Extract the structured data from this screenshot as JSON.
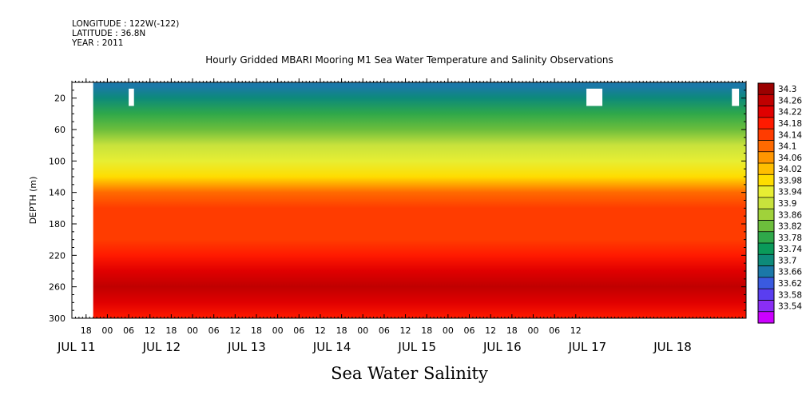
{
  "header": {
    "longitude": "LONGITUDE : 122W(-122)",
    "latitude": "LATITUDE : 36.8N",
    "year": "YEAR : 2011"
  },
  "chart_data": {
    "type": "heatmap",
    "title": "Hourly Gridded MBARI Mooring M1 Sea Water Temperature and Salinity Observations",
    "xlabel": "",
    "ylabel": "DEPTH (m)",
    "caption": "Sea Water Salinity",
    "x_range_hours": [
      0,
      190
    ],
    "ylim": [
      0,
      300
    ],
    "y_ticks": [
      20,
      60,
      100,
      140,
      180,
      220,
      260,
      300
    ],
    "x_hour_tick_labels": [
      "18",
      "00",
      "06",
      "12",
      "18",
      "00",
      "06",
      "12",
      "18",
      "00",
      "06",
      "12",
      "18",
      "00",
      "06",
      "12",
      "18",
      "00",
      "06",
      "12",
      "18",
      "00",
      "06",
      "12"
    ],
    "x_day_labels": [
      {
        "label": "JUL 11",
        "hour": 0
      },
      {
        "label": "JUL 12",
        "hour": 24
      },
      {
        "label": "JUL 13",
        "hour": 48
      },
      {
        "label": "JUL 14",
        "hour": 72
      },
      {
        "label": "JUL 15",
        "hour": 96
      },
      {
        "label": "JUL 16",
        "hour": 120
      },
      {
        "label": "JUL 17",
        "hour": 144
      },
      {
        "label": "JUL 18",
        "hour": 168
      }
    ],
    "colorbar_labels": [
      "34.3",
      "34.26",
      "34.22",
      "34.18",
      "34.14",
      "34.1",
      "34.06",
      "34.02",
      "33.98",
      "33.94",
      "33.9",
      "33.86",
      "33.82",
      "33.78",
      "33.74",
      "33.7",
      "33.66",
      "33.62",
      "33.58",
      "33.54"
    ],
    "colorbar_colors": [
      "#9b0000",
      "#c00000",
      "#e00000",
      "#ff1a00",
      "#ff3c00",
      "#ff6a00",
      "#ff9600",
      "#ffbe00",
      "#ffdd00",
      "#e7ee33",
      "#c8e23c",
      "#a0d23a",
      "#6cbe3c",
      "#2fa84a",
      "#0a9a5a",
      "#0d8a7a",
      "#1b78a8",
      "#3a5ae0",
      "#5a3ef0",
      "#8a2ef5",
      "#cc00ff"
    ],
    "salinity_profile": [
      {
        "depth": 5,
        "value": 33.64
      },
      {
        "depth": 20,
        "value": 33.69
      },
      {
        "depth": 40,
        "value": 33.74
      },
      {
        "depth": 60,
        "value": 33.81
      },
      {
        "depth": 80,
        "value": 33.87
      },
      {
        "depth": 100,
        "value": 33.93
      },
      {
        "depth": 120,
        "value": 33.98
      },
      {
        "depth": 140,
        "value": 34.06
      },
      {
        "depth": 160,
        "value": 34.1
      },
      {
        "depth": 180,
        "value": 34.11
      },
      {
        "depth": 200,
        "value": 34.13
      },
      {
        "depth": 220,
        "value": 34.17
      },
      {
        "depth": 240,
        "value": 34.21
      },
      {
        "depth": 260,
        "value": 34.24
      },
      {
        "depth": 280,
        "value": 34.2
      },
      {
        "depth": 300,
        "value": 34.16
      }
    ],
    "data_gaps": [
      {
        "x0": 0,
        "x1": 6,
        "y0": 0,
        "y1": 300
      },
      {
        "x0": 16,
        "x1": 17.5,
        "y0": 8,
        "y1": 30
      },
      {
        "x0": 145,
        "x1": 149.5,
        "y0": 8,
        "y1": 30
      },
      {
        "x0": 186,
        "x1": 188,
        "y0": 8,
        "y1": 30
      }
    ],
    "grid": false
  }
}
